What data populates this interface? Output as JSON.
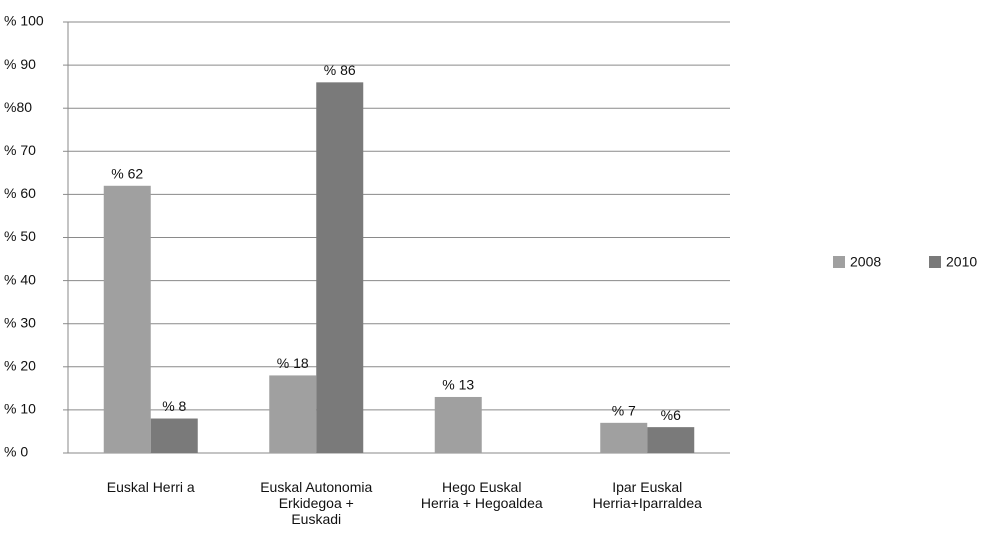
{
  "chart_data": {
    "type": "bar",
    "categories": [
      "Euskal Herri a",
      "Euskal Autonomia\nErkidegoa +\nEuskadi",
      "Hego Euskal\nHerria + Hegoaldea",
      "Ipar Euskal\nHerria+Iparraldea"
    ],
    "series": [
      {
        "name": "2008",
        "color": "#a0a0a0",
        "values": [
          62,
          18,
          13,
          7
        ],
        "value_labels": [
          "% 62",
          "% 18",
          "% 13",
          "% 7"
        ]
      },
      {
        "name": "2010",
        "color": "#7a7a7a",
        "values": [
          8,
          86,
          null,
          6
        ],
        "value_labels": [
          "% 8",
          "% 86",
          null,
          "%6"
        ]
      }
    ],
    "ylim": [
      0,
      100
    ],
    "yticks": [
      {
        "value": 0,
        "label": "% 0"
      },
      {
        "value": 10,
        "label": "% 10"
      },
      {
        "value": 20,
        "label": "% 20"
      },
      {
        "value": 30,
        "label": "% 30"
      },
      {
        "value": 40,
        "label": "% 40"
      },
      {
        "value": 50,
        "label": "% 50"
      },
      {
        "value": 60,
        "label": "% 60"
      },
      {
        "value": 70,
        "label": "% 70"
      },
      {
        "value": 80,
        "label": "%80"
      },
      {
        "value": 90,
        "label": "% 90"
      },
      {
        "value": 100,
        "label": "% 100"
      }
    ],
    "grid": true,
    "legend": "right"
  }
}
